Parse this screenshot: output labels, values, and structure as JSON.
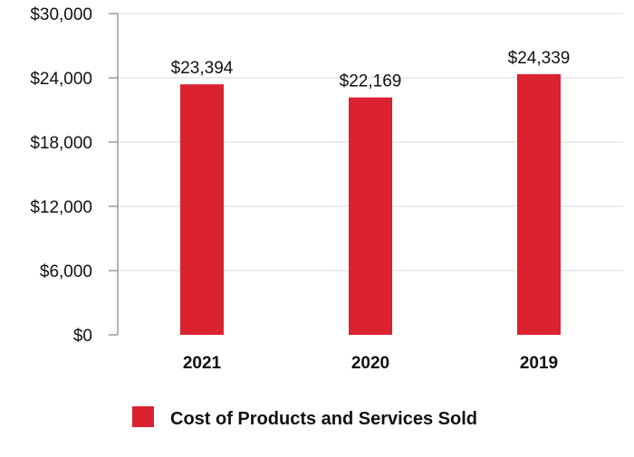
{
  "chart_data": {
    "type": "bar",
    "title": "",
    "xlabel": "",
    "ylabel": "",
    "categories": [
      "2021",
      "2020",
      "2019"
    ],
    "series": [
      {
        "name": "Cost of Products and Services Sold",
        "values": [
          23394,
          22169,
          24339
        ],
        "data_labels": [
          "$23,394",
          "$22,169",
          "$24,339"
        ],
        "color": "#DA2230"
      }
    ],
    "ylim": [
      0,
      30000
    ],
    "yticks": [
      {
        "value": 0,
        "label": "$0"
      },
      {
        "value": 6000,
        "label": "$6,000"
      },
      {
        "value": 12000,
        "label": "$12,000"
      },
      {
        "value": 18000,
        "label": "$18,000"
      },
      {
        "value": 24000,
        "label": "$24,000"
      },
      {
        "value": 30000,
        "label": "$30,000"
      }
    ],
    "grid": true,
    "gridColor": "#e6e6e6",
    "axisColor": "#9a9a9a",
    "legend": {
      "position": "bottom-center"
    }
  }
}
